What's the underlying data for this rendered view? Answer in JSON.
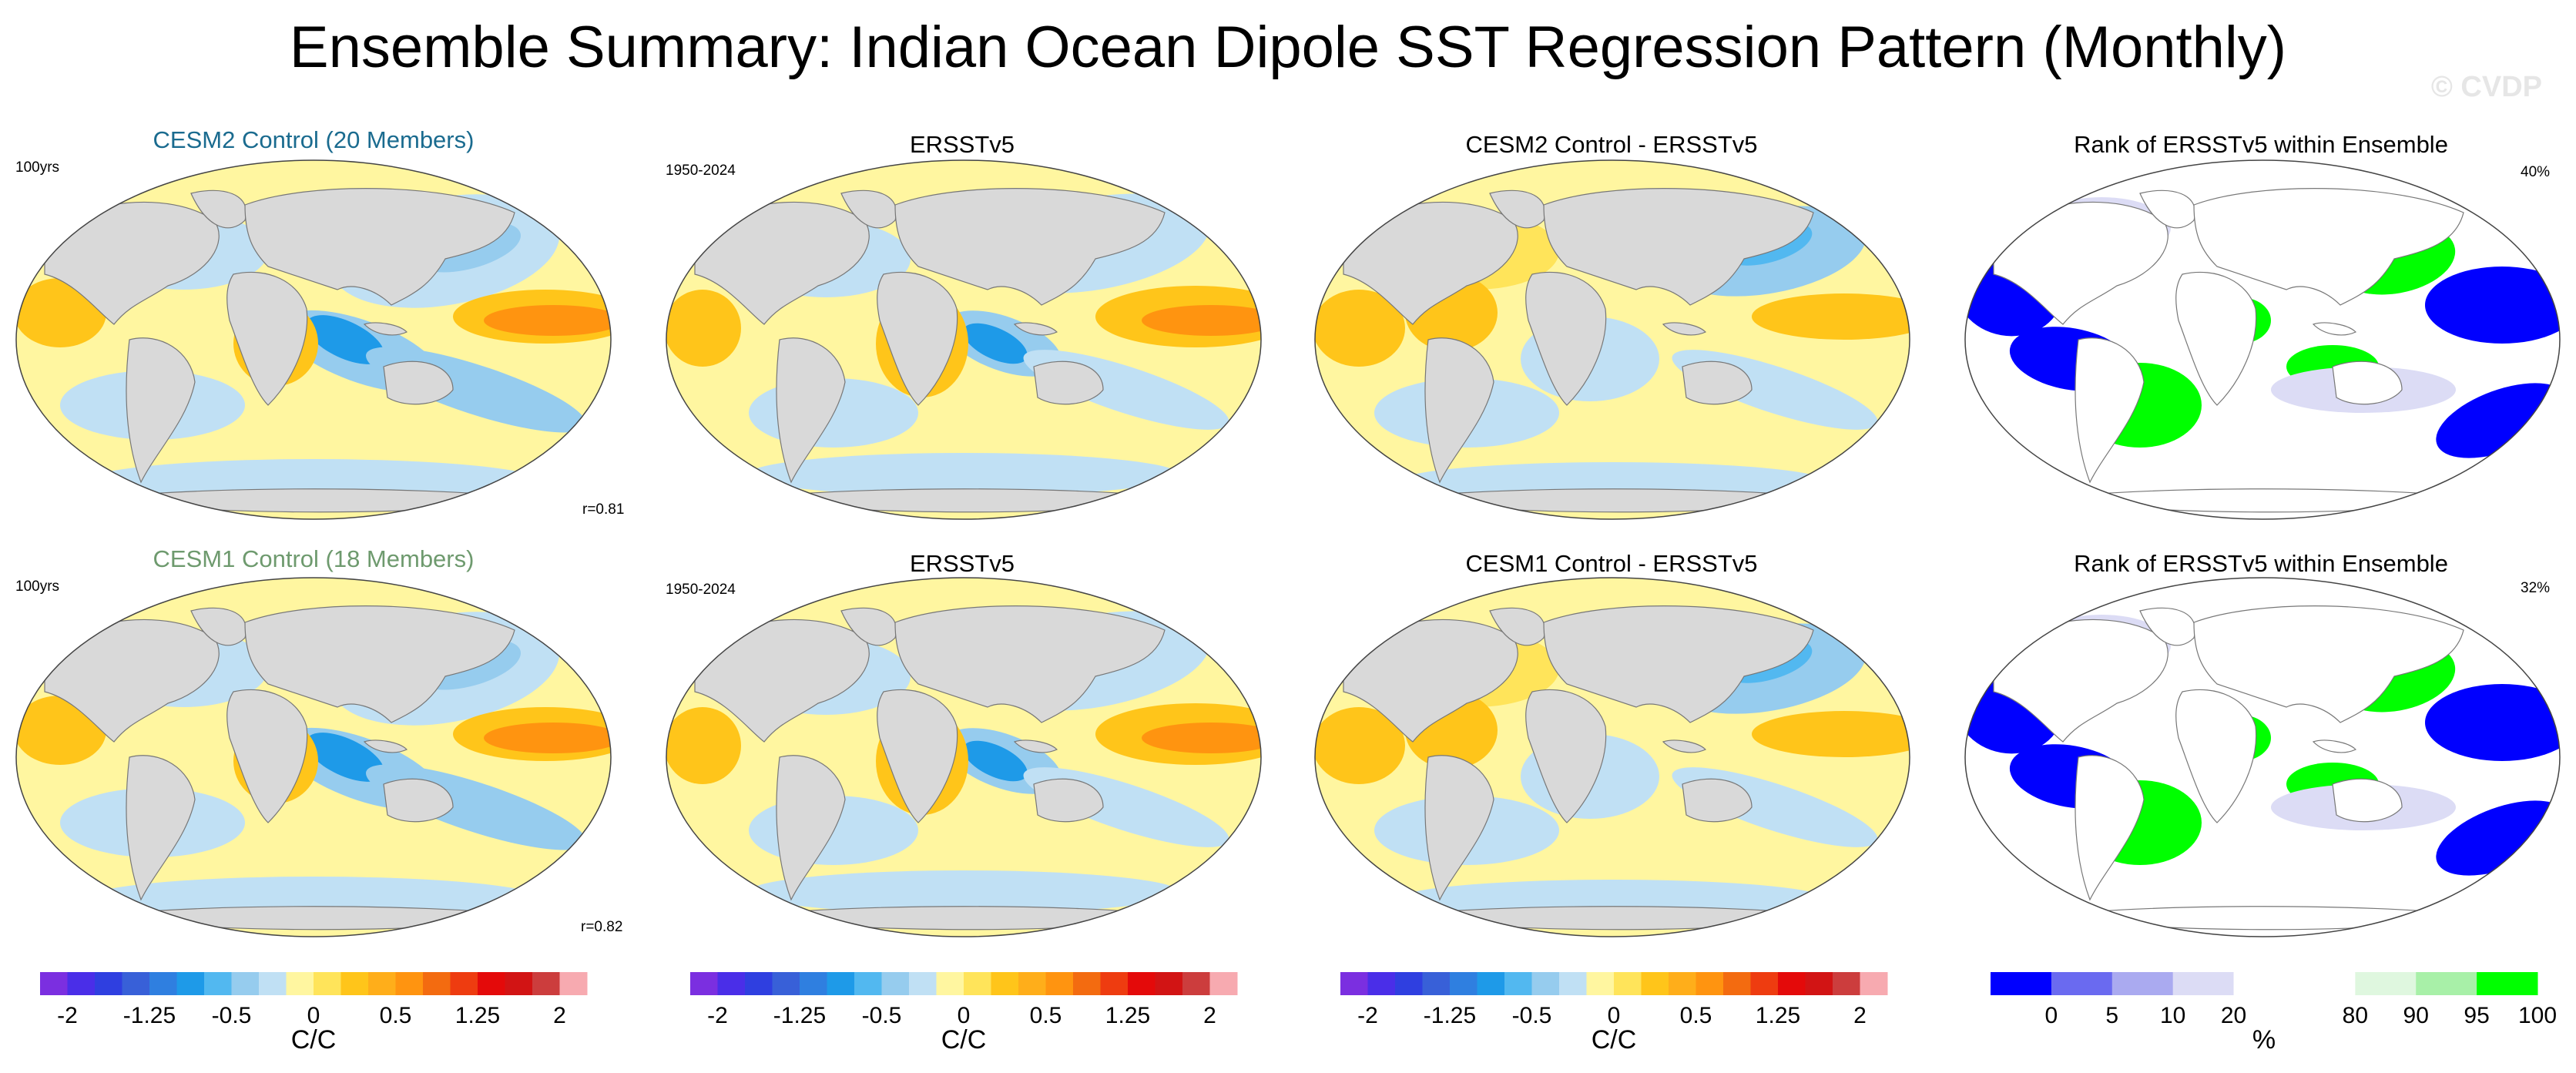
{
  "title": "Ensemble Summary: Indian Ocean Dipole SST Regression Pattern (Monthly)",
  "watermark": "© CVDP",
  "colors": {
    "land": "#d9d9d9",
    "cesm2_title": "#1a6b8f",
    "cesm1_title": "#6e9a6e"
  },
  "rows": [
    {
      "panels": [
        {
          "kind": "model",
          "title": "CESM2 Control (20 Members)",
          "left_note": "100yrs",
          "right_note": "r=0.81"
        },
        {
          "kind": "obs",
          "title": "ERSSTv5",
          "left_note": "1950-2024"
        },
        {
          "kind": "diff",
          "title": "CESM2 Control - ERSSTv5"
        },
        {
          "kind": "rank",
          "title": "Rank of ERSSTv5 within Ensemble",
          "right_note": "40%"
        }
      ]
    },
    {
      "panels": [
        {
          "kind": "model",
          "title": "CESM1 Control (18 Members)",
          "left_note": "100yrs",
          "right_note": "r=0.82"
        },
        {
          "kind": "obs",
          "title": "ERSSTv5",
          "left_note": "1950-2024"
        },
        {
          "kind": "diff",
          "title": "CESM1 Control - ERSSTv5"
        },
        {
          "kind": "rank",
          "title": "Rank of ERSSTv5 within Ensemble",
          "right_note": "32%"
        }
      ]
    }
  ],
  "colorbars": {
    "sst": {
      "colors": [
        "#7b2fe0",
        "#4a2ee8",
        "#2f3fe0",
        "#3860d8",
        "#2f7fe0",
        "#1e9ae8",
        "#52b8f0",
        "#96ccee",
        "#c0e0f4",
        "#fff6a0",
        "#ffe45a",
        "#ffc51a",
        "#ffae1a",
        "#ff9410",
        "#f36b10",
        "#ee3c10",
        "#e40a0a",
        "#d21414",
        "#cc3d3d",
        "#f7aab0"
      ],
      "tick_labels": [
        "-2",
        "-1.25",
        "-0.5",
        "0",
        "0.5",
        "1.25",
        "2"
      ],
      "tick_positions": [
        1,
        4,
        7,
        10,
        13,
        16,
        19
      ],
      "unit": "C/C"
    },
    "rank": {
      "colors": [
        "#0000ff",
        "#6a6af0",
        "#aaaaf0",
        "#dcdcf5",
        "#ffffff",
        "#ffffff",
        "#dff7df",
        "#a8f0a8",
        "#00ff00"
      ],
      "tick_labels": [
        "0",
        "5",
        "10",
        "20",
        "80",
        "90",
        "95",
        "100"
      ],
      "tick_positions": [
        1,
        2,
        3,
        4,
        6,
        7,
        8,
        9
      ],
      "unit": "%"
    }
  },
  "chart_data": [
    {
      "type": "heatmap",
      "title": "CESM2 Control (20 Members)",
      "xlabel": "",
      "ylabel": "",
      "vmin": -2,
      "vmax": 2,
      "units": "C/C",
      "note": "r=0.81 (100yrs)"
    },
    {
      "type": "heatmap",
      "title": "ERSSTv5",
      "xlabel": "",
      "ylabel": "",
      "vmin": -2,
      "vmax": 2,
      "units": "C/C",
      "note": "1950-2024"
    },
    {
      "type": "heatmap",
      "title": "CESM2 Control - ERSSTv5",
      "xlabel": "",
      "ylabel": "",
      "vmin": -2,
      "vmax": 2,
      "units": "C/C"
    },
    {
      "type": "heatmap",
      "title": "Rank of ERSSTv5 within Ensemble",
      "xlabel": "",
      "ylabel": "",
      "levels": [
        0,
        5,
        10,
        20,
        80,
        90,
        95,
        100
      ],
      "units": "%",
      "note": "40%"
    },
    {
      "type": "heatmap",
      "title": "CESM1 Control (18 Members)",
      "xlabel": "",
      "ylabel": "",
      "vmin": -2,
      "vmax": 2,
      "units": "C/C",
      "note": "r=0.82 (100yrs)"
    },
    {
      "type": "heatmap",
      "title": "ERSSTv5",
      "xlabel": "",
      "ylabel": "",
      "vmin": -2,
      "vmax": 2,
      "units": "C/C",
      "note": "1950-2024"
    },
    {
      "type": "heatmap",
      "title": "CESM1 Control - ERSSTv5",
      "xlabel": "",
      "ylabel": "",
      "vmin": -2,
      "vmax": 2,
      "units": "C/C"
    },
    {
      "type": "heatmap",
      "title": "Rank of ERSSTv5 within Ensemble",
      "xlabel": "",
      "ylabel": "",
      "levels": [
        0,
        5,
        10,
        20,
        80,
        90,
        95,
        100
      ],
      "units": "%",
      "note": "32%"
    }
  ]
}
